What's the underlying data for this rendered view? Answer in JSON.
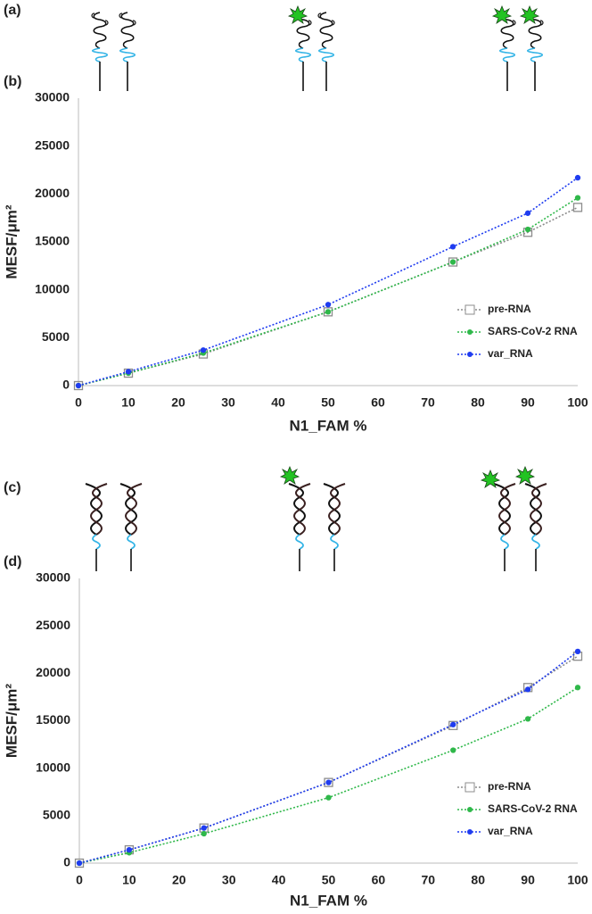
{
  "illustrations": [
    {
      "label": "(a)"
    },
    {
      "label": "(c)"
    }
  ],
  "chart_data": [
    {
      "type": "line",
      "panel_label": "(b)",
      "x_label": "N1_FAM %",
      "y_label": "MESF/μm²",
      "x": [
        0,
        10,
        25,
        50,
        75,
        90,
        100
      ],
      "xlim": [
        0,
        100
      ],
      "xticks": [
        0,
        10,
        20,
        30,
        40,
        50,
        60,
        70,
        80,
        90,
        100
      ],
      "ylim": [
        0,
        30000
      ],
      "yticks": [
        0,
        5000,
        10000,
        15000,
        20000,
        25000,
        30000
      ],
      "grid": false,
      "legend": "lower right",
      "series": [
        {
          "name": "pre-RNA",
          "color": "#8c8c8c",
          "marker": "square-open",
          "values": [
            0,
            1300,
            3300,
            7700,
            12900,
            16000,
            18600
          ]
        },
        {
          "name": "SARS-CoV-2 RNA",
          "color": "#2fb84a",
          "marker": "circle",
          "values": [
            0,
            1300,
            3400,
            7700,
            12900,
            16300,
            19600
          ]
        },
        {
          "name": "var_RNA",
          "color": "#1f3cf0",
          "marker": "circle",
          "values": [
            0,
            1450,
            3700,
            8450,
            14500,
            18000,
            21700
          ]
        }
      ]
    },
    {
      "type": "line",
      "panel_label": "(d)",
      "x_label": "N1_FAM %",
      "y_label": "MESF/μm²",
      "x": [
        0,
        10,
        25,
        50,
        75,
        90,
        100
      ],
      "xlim": [
        0,
        100
      ],
      "xticks": [
        0,
        10,
        20,
        30,
        40,
        50,
        60,
        70,
        80,
        90,
        100
      ],
      "ylim": [
        0,
        30000
      ],
      "yticks": [
        0,
        5000,
        10000,
        15000,
        20000,
        25000,
        30000
      ],
      "grid": false,
      "legend": "lower right",
      "series": [
        {
          "name": "pre-RNA",
          "color": "#8c8c8c",
          "marker": "square-open",
          "values": [
            0,
            1400,
            3700,
            8500,
            14500,
            18500,
            21800
          ]
        },
        {
          "name": "SARS-CoV-2 RNA",
          "color": "#2fb84a",
          "marker": "circle",
          "values": [
            0,
            1100,
            3100,
            6900,
            11900,
            15200,
            18500
          ]
        },
        {
          "name": "var_RNA",
          "color": "#1f3cf0",
          "marker": "circle",
          "values": [
            0,
            1400,
            3700,
            8500,
            14600,
            18300,
            22300
          ]
        }
      ]
    }
  ]
}
